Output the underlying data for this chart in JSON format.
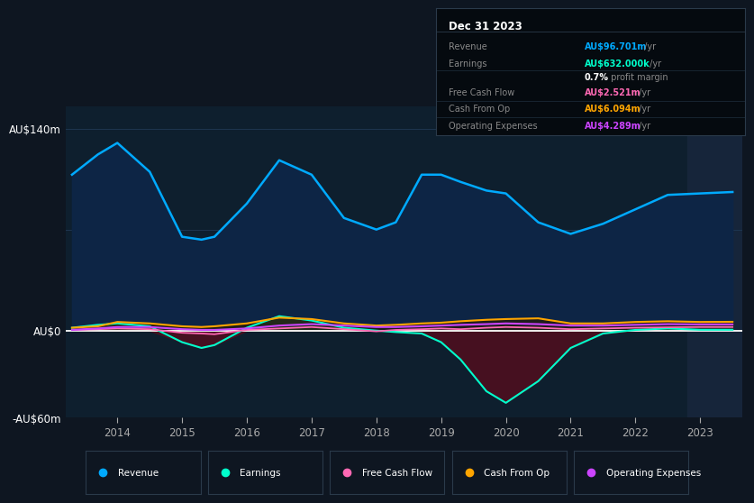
{
  "background_color": "#0e1621",
  "plot_bg_color": "#0e1f2e",
  "years": [
    2013.3,
    2013.7,
    2014.0,
    2014.5,
    2015.0,
    2015.3,
    2015.5,
    2016.0,
    2016.5,
    2017.0,
    2017.5,
    2018.0,
    2018.3,
    2018.7,
    2019.0,
    2019.3,
    2019.7,
    2020.0,
    2020.5,
    2021.0,
    2021.5,
    2022.0,
    2022.5,
    2023.0,
    2023.5
  ],
  "revenue": [
    108,
    122,
    130,
    110,
    65,
    63,
    65,
    88,
    118,
    108,
    78,
    70,
    75,
    108,
    108,
    103,
    97,
    95,
    75,
    67,
    74,
    84,
    94,
    95,
    96
  ],
  "earnings": [
    2,
    4,
    5,
    3,
    -8,
    -12,
    -10,
    2,
    10,
    7,
    2,
    0,
    -1,
    -2,
    -8,
    -20,
    -42,
    -50,
    -35,
    -12,
    -2,
    0.5,
    1.5,
    0.6,
    0.6
  ],
  "free_cash_flow": [
    0.5,
    1,
    1.5,
    1,
    -1.5,
    -2,
    -2.5,
    0.5,
    1.5,
    2.5,
    1,
    -0.5,
    0.5,
    1,
    1.5,
    1,
    2,
    2.5,
    2,
    1,
    1.5,
    2,
    2.3,
    2.5,
    2.5
  ],
  "cash_from_op": [
    2,
    3,
    6,
    5,
    3,
    2.5,
    3,
    5,
    9,
    8,
    5,
    3.5,
    4,
    5,
    5.5,
    6.5,
    7.5,
    8,
    8.5,
    5,
    5,
    6,
    6.5,
    6,
    6.1
  ],
  "operating_expenses": [
    0.5,
    1.5,
    2.5,
    2.5,
    1,
    0.5,
    0.5,
    1.5,
    3.5,
    4.5,
    3.5,
    2.5,
    2.5,
    3,
    3.5,
    4,
    4.5,
    5,
    4.5,
    3.5,
    3.5,
    4,
    4.5,
    4.3,
    4.3
  ],
  "revenue_color": "#00aaff",
  "earnings_color": "#00ffcc",
  "fcf_color": "#ff69b4",
  "cashop_color": "#ffa500",
  "opex_color": "#cc44ff",
  "revenue_fill_color": "#0d2545",
  "earnings_fill_pos_color": "#1a5040",
  "earnings_fill_neg_color": "#4a1020",
  "ylim_min": -60,
  "ylim_max": 155,
  "yticks": [
    -60,
    0,
    140
  ],
  "ytick_labels": [
    "-AU$60m",
    "AU$0",
    "AU$140m"
  ],
  "xtick_years": [
    2014,
    2015,
    2016,
    2017,
    2018,
    2019,
    2020,
    2021,
    2022,
    2023
  ],
  "grid_color": "#1e3550",
  "zero_line_color": "#ffffff",
  "info_box_bg": "#050a0f",
  "shaded_right_bg": "#16253a",
  "legend_items": [
    {
      "label": "Revenue",
      "color": "#00aaff"
    },
    {
      "label": "Earnings",
      "color": "#00ffcc"
    },
    {
      "label": "Free Cash Flow",
      "color": "#ff69b4"
    },
    {
      "label": "Cash From Op",
      "color": "#ffa500"
    },
    {
      "label": "Operating Expenses",
      "color": "#cc44ff"
    }
  ],
  "info_rows": [
    {
      "label": "Revenue",
      "value": "AU$96.701m",
      "suffix": " /yr",
      "color": "#00aaff"
    },
    {
      "label": "Earnings",
      "value": "AU$632.000k",
      "suffix": " /yr",
      "color": "#00ffcc"
    },
    {
      "label": "",
      "value": "0.7%",
      "suffix": " profit margin",
      "color": "#ffffff"
    },
    {
      "label": "Free Cash Flow",
      "value": "AU$2.521m",
      "suffix": " /yr",
      "color": "#ff69b4"
    },
    {
      "label": "Cash From Op",
      "value": "AU$6.094m",
      "suffix": " /yr",
      "color": "#ffa500"
    },
    {
      "label": "Operating Expenses",
      "value": "AU$4.289m",
      "suffix": " /yr",
      "color": "#cc44ff"
    }
  ]
}
